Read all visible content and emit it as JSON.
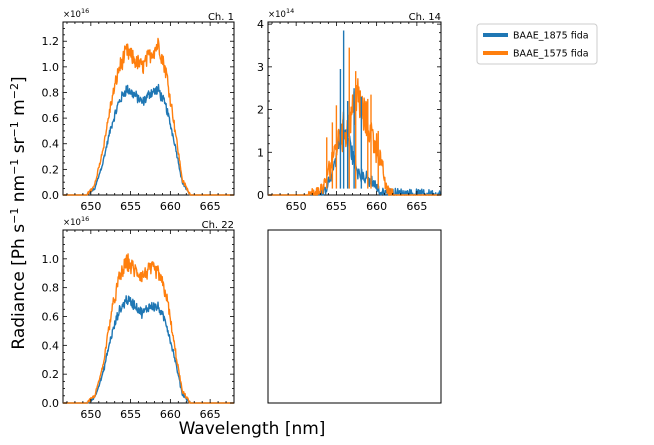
{
  "figure": {
    "xlabel": "Wavelength [nm]",
    "ylabel_parts": [
      "Radiance [Ph s",
      "−1",
      " nm",
      "−1",
      " sr",
      "−1",
      " m",
      "−2",
      "]"
    ]
  },
  "legend": {
    "placement": "upper right, outside panels",
    "entries": [
      {
        "label": "BAAE_1875 fida",
        "color": "#1f77b4"
      },
      {
        "label": "BAAE_1575 fida",
        "color": "#ff7f0e"
      }
    ]
  },
  "chart_data": [
    {
      "type": "line",
      "title": "Ch. 1",
      "multiplier": "×10",
      "multiplier_exp": "16",
      "xlim": [
        646.5,
        668.0
      ],
      "ylim": [
        0,
        1.35
      ],
      "xticks": [
        650,
        655,
        660,
        665
      ],
      "xtick_labels": [
        "650",
        "655",
        "660",
        "665"
      ],
      "yticks": [
        0,
        0.2,
        0.4,
        0.6,
        0.8,
        1.0,
        1.2
      ],
      "ytick_labels": [
        "0.0",
        "0.2",
        "0.4",
        "0.6",
        "0.8",
        "1.0",
        "1.2"
      ],
      "series": [
        {
          "name": "BAAE_1575 fida",
          "color": "#ff7f0e",
          "noise": 0.06,
          "x": [
            646.5,
            649.5,
            650.5,
            651.5,
            652.5,
            653.5,
            654.5,
            655.5,
            656.5,
            657.5,
            658.5,
            659.5,
            660.5,
            661.5,
            662.5,
            668.0
          ],
          "values": [
            0,
            0,
            0.08,
            0.35,
            0.7,
            0.98,
            1.12,
            1.05,
            1.0,
            1.1,
            1.18,
            0.95,
            0.55,
            0.12,
            0,
            0
          ]
        },
        {
          "name": "BAAE_1875 fida",
          "color": "#1f77b4",
          "noise": 0.05,
          "x": [
            646.5,
            649.5,
            650.5,
            651.5,
            652.5,
            653.5,
            654.5,
            655.5,
            656.5,
            657.5,
            658.5,
            659.5,
            660.5,
            661.5,
            662.5,
            668.0
          ],
          "values": [
            0,
            0,
            0.05,
            0.25,
            0.52,
            0.72,
            0.83,
            0.78,
            0.72,
            0.8,
            0.82,
            0.68,
            0.42,
            0.1,
            0,
            0
          ]
        }
      ]
    },
    {
      "type": "line",
      "title": "Ch. 14",
      "multiplier": "×10",
      "multiplier_exp": "14",
      "xlim": [
        646.5,
        668.0
      ],
      "ylim": [
        0,
        4.05
      ],
      "xticks": [
        650,
        655,
        660,
        665
      ],
      "xtick_labels": [
        "650",
        "655",
        "660",
        "665"
      ],
      "yticks": [
        0,
        1,
        2,
        3,
        4
      ],
      "ytick_labels": [
        "0",
        "1",
        "2",
        "3",
        "4"
      ],
      "series": [
        {
          "name": "BAAE_1575 fida",
          "color": "#ff7f0e",
          "noise": 0.25,
          "x": [
            646.5,
            651.5,
            652.5,
            653.5,
            654.5,
            655.5,
            656.5,
            657.5,
            658.5,
            659.5,
            660.5,
            661.3,
            662.0,
            668.0
          ],
          "values": [
            0,
            0,
            0.05,
            0.2,
            0.9,
            1.4,
            1.6,
            2.3,
            1.8,
            1.4,
            0.8,
            0.1,
            0,
            0
          ]
        },
        {
          "name": "BAAE_1875 fida",
          "color": "#1f77b4",
          "noise": 0.2,
          "x": [
            646.5,
            652.5,
            653.5,
            654.5,
            655.5,
            656.5,
            657.5,
            658.5,
            659.5,
            660.5,
            668.0
          ],
          "values": [
            0,
            0,
            0.05,
            0.5,
            1.5,
            1.3,
            0.6,
            0.4,
            0.3,
            0.05,
            0
          ]
        }
      ],
      "spikes": [
        {
          "series": "BAAE_1875 fida",
          "x": 655.5,
          "value": 2.95
        },
        {
          "series": "BAAE_1875 fida",
          "x": 655.9,
          "value": 3.85
        },
        {
          "series": "BAAE_1875 fida",
          "x": 656.4,
          "value": 2.2
        },
        {
          "series": "BAAE_1875 fida",
          "x": 657.2,
          "value": 2.5
        },
        {
          "series": "BAAE_1875 fida",
          "x": 658.1,
          "value": 2.3
        },
        {
          "series": "BAAE_1575 fida",
          "x": 653.8,
          "value": 1.35
        },
        {
          "series": "BAAE_1575 fida",
          "x": 654.5,
          "value": 1.7
        },
        {
          "series": "BAAE_1575 fida",
          "x": 655.0,
          "value": 2.1
        },
        {
          "series": "BAAE_1575 fida",
          "x": 656.6,
          "value": 3.45
        },
        {
          "series": "BAAE_1575 fida",
          "x": 657.4,
          "value": 2.9
        },
        {
          "series": "BAAE_1575 fida",
          "x": 658.9,
          "value": 2.25
        },
        {
          "series": "BAAE_1575 fida",
          "x": 659.3,
          "value": 2.35
        },
        {
          "series": "BAAE_1575 fida",
          "x": 660.2,
          "value": 1.5
        }
      ]
    },
    {
      "type": "line",
      "title": "Ch. 22",
      "multiplier": "×10",
      "multiplier_exp": "16",
      "xlim": [
        646.5,
        668.0
      ],
      "ylim": [
        0,
        1.2
      ],
      "xticks": [
        650,
        655,
        660,
        665
      ],
      "xtick_labels": [
        "650",
        "655",
        "660",
        "665"
      ],
      "yticks": [
        0,
        0.2,
        0.4,
        0.6,
        0.8,
        1.0
      ],
      "ytick_labels": [
        "0.0",
        "0.2",
        "0.4",
        "0.6",
        "0.8",
        "1.0"
      ],
      "series": [
        {
          "name": "BAAE_1575 fida",
          "color": "#ff7f0e",
          "noise": 0.06,
          "x": [
            646.5,
            649.5,
            650.5,
            651.5,
            652.5,
            653.5,
            654.5,
            655.5,
            656.5,
            657.5,
            658.5,
            659.5,
            660.5,
            661.5,
            662.5,
            668.0
          ],
          "values": [
            0,
            0,
            0.05,
            0.25,
            0.6,
            0.85,
            0.98,
            0.92,
            0.88,
            0.93,
            0.9,
            0.75,
            0.4,
            0.08,
            0,
            0
          ]
        },
        {
          "name": "BAAE_1875 fida",
          "color": "#1f77b4",
          "noise": 0.05,
          "x": [
            646.5,
            649.5,
            650.5,
            651.5,
            652.5,
            653.5,
            654.5,
            655.5,
            656.5,
            657.5,
            658.5,
            659.5,
            660.5,
            661.5,
            662.5,
            668.0
          ],
          "values": [
            0,
            0,
            0.04,
            0.2,
            0.45,
            0.63,
            0.72,
            0.68,
            0.62,
            0.68,
            0.66,
            0.55,
            0.32,
            0.06,
            0,
            0
          ]
        }
      ]
    },
    {
      "type": "line",
      "title": "",
      "empty": true
    }
  ]
}
